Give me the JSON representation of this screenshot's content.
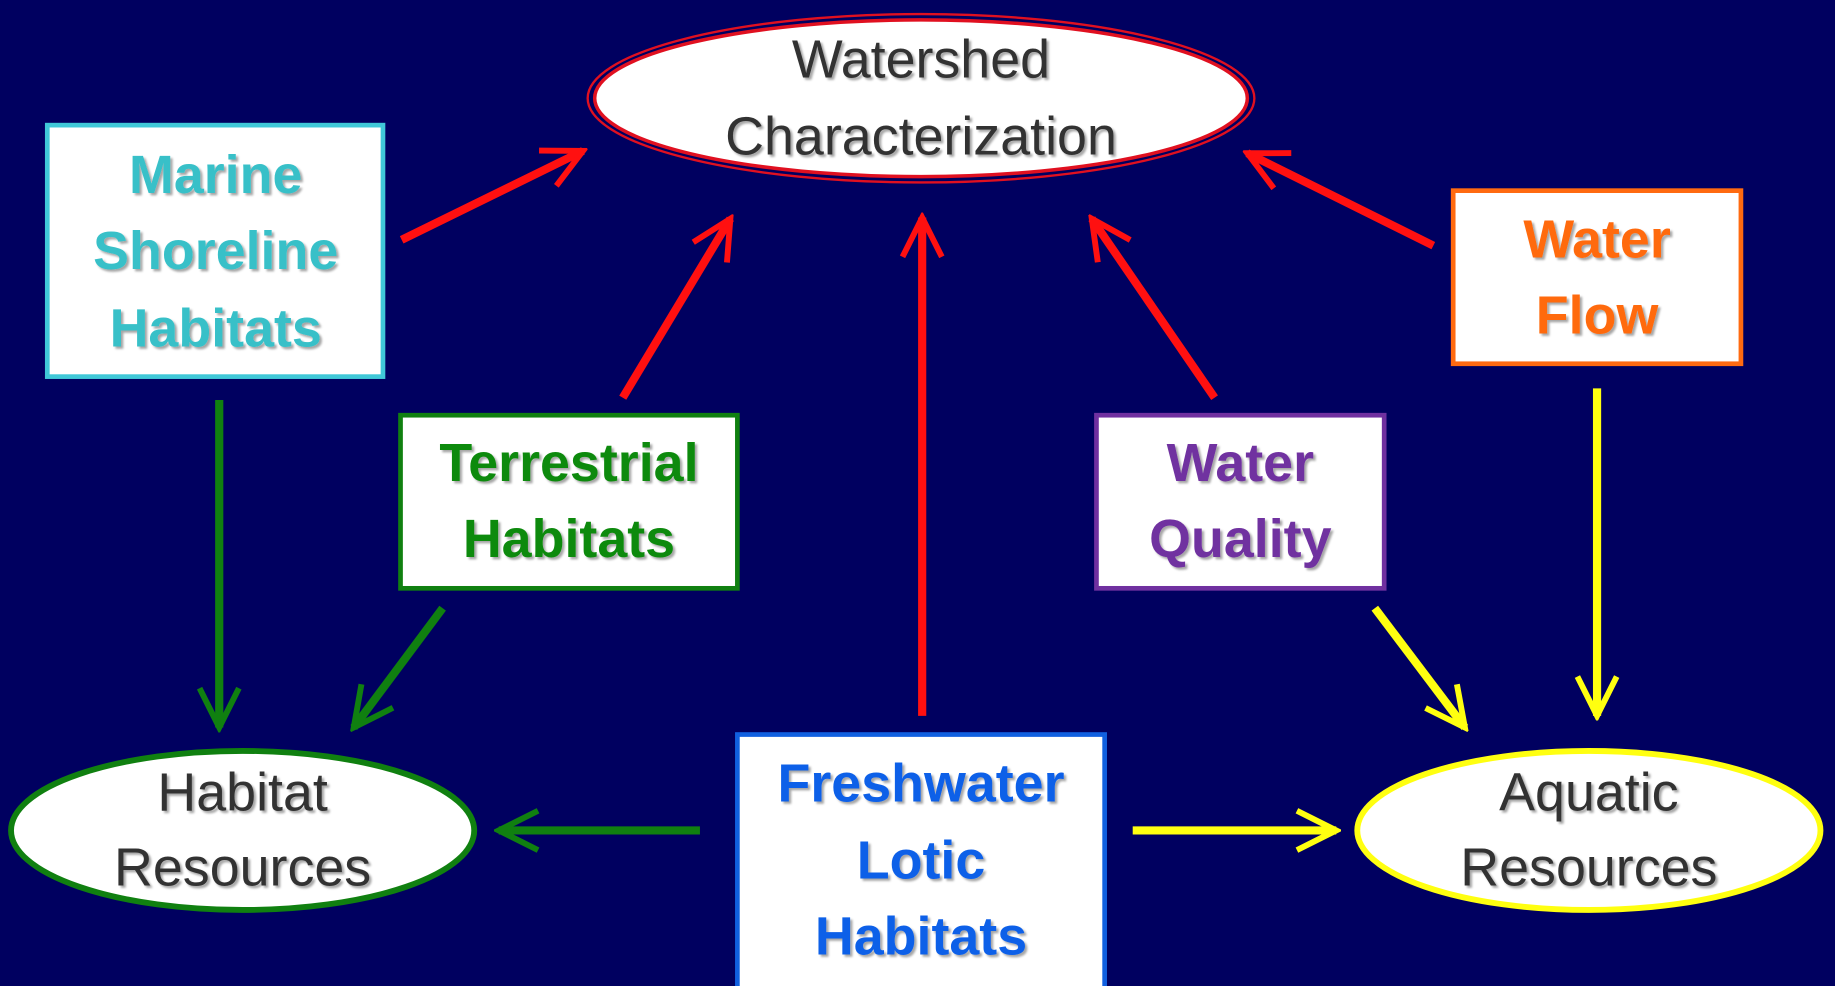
{
  "nodes": [
    {
      "lines": [
        "Watershed",
        "Characterization"
      ]
    },
    {
      "lines": [
        "Marine",
        "Shoreline",
        "Habitats"
      ]
    },
    {
      "lines": [
        "Terrestrial",
        "Habitats"
      ]
    },
    {
      "lines": [
        "Water",
        "Quality"
      ]
    },
    {
      "lines": [
        "Water",
        "Flow"
      ]
    },
    {
      "lines": [
        "Freshwater",
        "Lotic",
        "Habitats"
      ]
    },
    {
      "lines": [
        "Habitat",
        "Resources"
      ]
    },
    {
      "lines": [
        "Aquatic",
        "Resources"
      ]
    }
  ]
}
